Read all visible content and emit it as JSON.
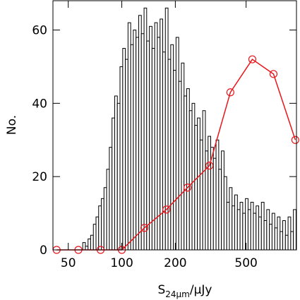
{
  "chart_data": [
    {
      "type": "histogram",
      "ylabel": "No.",
      "xlabel": {
        "main": "S",
        "sub": "24μm",
        "rest": "/μJy"
      },
      "xscale": "log",
      "xlim": [
        41,
        960
      ],
      "ylim": [
        0,
        68
      ],
      "xticks": [
        50,
        100,
        200,
        500
      ],
      "yticks": [
        0,
        20,
        40,
        60
      ],
      "color": "#000000",
      "bins": [
        60.3,
        62.4,
        64.6,
        66.8,
        69.2,
        71.6,
        74.1,
        76.7,
        79.4,
        82.2,
        85.1,
        88.1,
        91.2,
        94.4,
        97.7,
        101.2,
        104.7,
        108.4,
        112.2,
        116.1,
        120.2,
        124.5,
        128.8,
        133.4,
        138.0,
        142.9,
        147.9,
        153.1,
        158.5,
        164.1,
        169.8,
        175.8,
        182.0,
        188.4,
        195.0,
        201.8,
        208.9,
        216.3,
        223.9,
        231.7,
        239.9,
        248.3,
        257.0,
        266.1,
        275.4,
        285.1,
        295.1,
        305.5,
        316.2,
        327.3,
        338.8,
        350.8,
        363.1,
        375.8,
        389.0,
        402.7,
        416.9,
        431.5,
        446.7,
        462.4,
        478.6,
        495.5,
        512.9,
        530.9,
        549.5,
        568.9,
        588.8,
        609.5,
        631.0,
        653.1,
        676.1,
        699.8,
        724.4,
        749.9,
        776.2,
        803.5,
        831.8,
        861.0,
        891.3,
        922.5,
        955.0
      ],
      "values": [
        2,
        1,
        3,
        4,
        7,
        9,
        12,
        14,
        17,
        22,
        28,
        36,
        42,
        40,
        50,
        55,
        52,
        62,
        56,
        60,
        58,
        64,
        59,
        66,
        57,
        61,
        55,
        62,
        58,
        63,
        54,
        66,
        52,
        56,
        49,
        58,
        46,
        51,
        42,
        44,
        38,
        40,
        34,
        36,
        30,
        38,
        27,
        31,
        28,
        25,
        30,
        22,
        27,
        20,
        13,
        17,
        12,
        15,
        11,
        13,
        10,
        14,
        11,
        13,
        10,
        12,
        9,
        13,
        8,
        11,
        7,
        10,
        6,
        9,
        5,
        8,
        4,
        9,
        5,
        11
      ]
    },
    {
      "type": "line",
      "color": "#e8161b",
      "x": [
        43,
        57,
        76,
        100,
        134,
        178,
        234,
        311,
        408,
        542,
        713,
        946
      ],
      "values": [
        0,
        0,
        0,
        0,
        6,
        11,
        17,
        23,
        43,
        52,
        48,
        30
      ]
    }
  ]
}
